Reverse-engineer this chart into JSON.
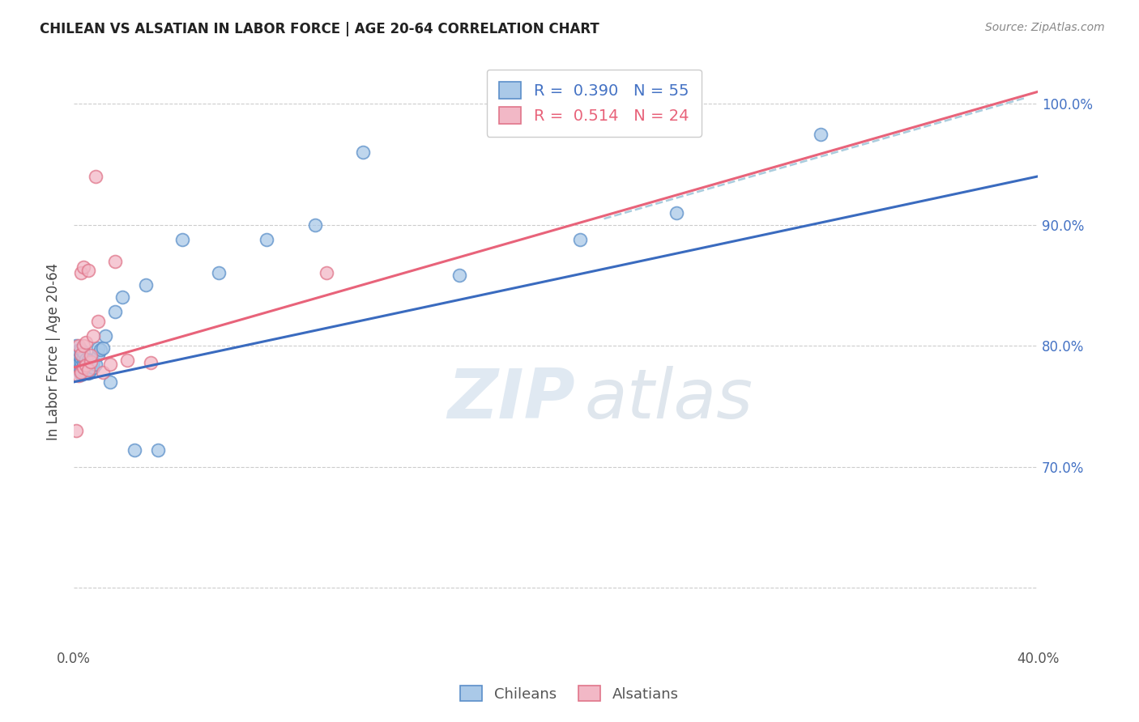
{
  "title": "CHILEAN VS ALSATIAN IN LABOR FORCE | AGE 20-64 CORRELATION CHART",
  "source": "Source: ZipAtlas.com",
  "ylabel": "In Labor Force | Age 20-64",
  "xlim": [
    0.0,
    0.4
  ],
  "ylim": [
    0.55,
    1.04
  ],
  "ytick_labels_right": [
    "100.0%",
    "90.0%",
    "80.0%",
    "70.0%"
  ],
  "ytick_positions_right": [
    1.0,
    0.9,
    0.8,
    0.7
  ],
  "legend_blue_R": "0.390",
  "legend_blue_N": "55",
  "legend_pink_R": "0.514",
  "legend_pink_N": "24",
  "blue_fill": "#aac9e8",
  "pink_fill": "#f2b8c6",
  "blue_edge": "#5b8fc9",
  "pink_edge": "#e0758a",
  "blue_line": "#3a6bbf",
  "pink_line": "#e8637a",
  "dashed_color": "#aaccdd",
  "watermark_zip": "ZIP",
  "watermark_atlas": "atlas",
  "chilean_x": [
    0.001,
    0.001,
    0.001,
    0.001,
    0.001,
    0.002,
    0.002,
    0.002,
    0.002,
    0.002,
    0.003,
    0.003,
    0.003,
    0.003,
    0.003,
    0.003,
    0.003,
    0.004,
    0.004,
    0.004,
    0.004,
    0.004,
    0.005,
    0.005,
    0.005,
    0.005,
    0.006,
    0.006,
    0.006,
    0.007,
    0.007,
    0.007,
    0.008,
    0.008,
    0.009,
    0.01,
    0.01,
    0.011,
    0.012,
    0.013,
    0.015,
    0.017,
    0.02,
    0.025,
    0.03,
    0.035,
    0.045,
    0.06,
    0.08,
    0.1,
    0.12,
    0.16,
    0.21,
    0.25,
    0.31
  ],
  "chilean_y": [
    0.785,
    0.79,
    0.793,
    0.796,
    0.8,
    0.78,
    0.783,
    0.787,
    0.792,
    0.796,
    0.776,
    0.78,
    0.784,
    0.787,
    0.79,
    0.793,
    0.797,
    0.779,
    0.783,
    0.786,
    0.79,
    0.795,
    0.778,
    0.781,
    0.785,
    0.789,
    0.777,
    0.782,
    0.788,
    0.78,
    0.784,
    0.788,
    0.782,
    0.787,
    0.785,
    0.793,
    0.798,
    0.797,
    0.798,
    0.808,
    0.77,
    0.828,
    0.84,
    0.714,
    0.85,
    0.714,
    0.888,
    0.86,
    0.888,
    0.9,
    0.96,
    0.858,
    0.888,
    0.91,
    0.975
  ],
  "alsatian_x": [
    0.001,
    0.002,
    0.002,
    0.003,
    0.003,
    0.003,
    0.004,
    0.004,
    0.004,
    0.005,
    0.005,
    0.006,
    0.006,
    0.007,
    0.007,
    0.008,
    0.009,
    0.01,
    0.012,
    0.015,
    0.017,
    0.022,
    0.032,
    0.105
  ],
  "alsatian_y": [
    0.73,
    0.775,
    0.8,
    0.778,
    0.793,
    0.86,
    0.782,
    0.8,
    0.865,
    0.784,
    0.803,
    0.78,
    0.862,
    0.787,
    0.792,
    0.808,
    0.94,
    0.82,
    0.778,
    0.785,
    0.87,
    0.788,
    0.786,
    0.86
  ],
  "blue_trend_x0": 0.0,
  "blue_trend_y0": 0.77,
  "blue_trend_x1": 0.4,
  "blue_trend_y1": 0.94,
  "pink_trend_x0": 0.0,
  "pink_trend_y0": 0.782,
  "pink_trend_x1": 0.4,
  "pink_trend_y1": 1.01,
  "dash_trend_x0": 0.22,
  "dash_trend_y0": 0.905,
  "dash_trend_x1": 0.395,
  "dash_trend_y1": 1.005
}
